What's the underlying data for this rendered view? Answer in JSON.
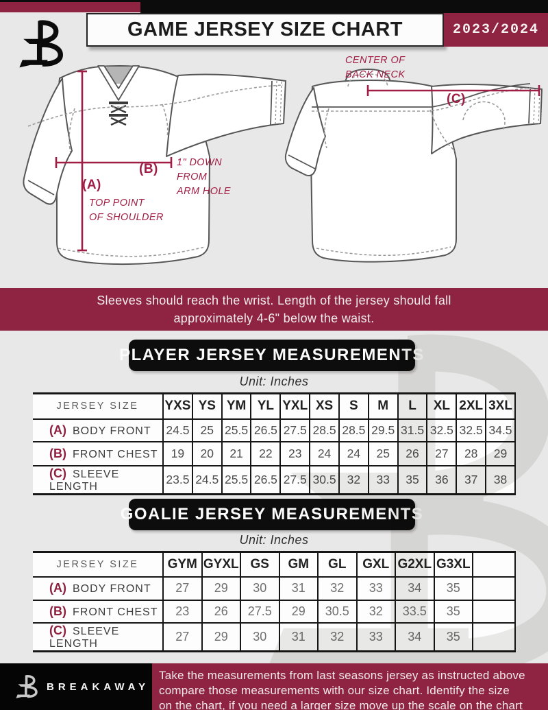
{
  "header": {
    "title": "GAME JERSEY SIZE CHART",
    "season": "2023/2024"
  },
  "diagram": {
    "annotations": {
      "a_tag": "(A)",
      "a_caption_line1": "TOP POINT",
      "a_caption_line2": "OF SHOULDER",
      "b_tag": "(B)",
      "b_caption_line1": "1\" DOWN",
      "b_caption_line2": "FROM",
      "b_caption_line3": "ARM HOLE",
      "c_tag": "(C)",
      "c_caption_line1": "CENTER OF",
      "c_caption_line2": "BACK NECK"
    }
  },
  "notice": {
    "line1": "Sleeves should reach the wrist. Length of the jersey should fall",
    "line2": "approximately 4-6\" below the waist."
  },
  "player_table": {
    "section_title": "PLAYER JERSEY MEASUREMENTS",
    "unit_label": "Unit: Inches",
    "corner_header": "JERSEY SIZE",
    "sizes": [
      "YXS",
      "YS",
      "YM",
      "YL",
      "YXL",
      "XS",
      "S",
      "M",
      "L",
      "XL",
      "2XL",
      "3XL"
    ],
    "rows": [
      {
        "tag": "(A)",
        "label": "BODY FRONT",
        "values": [
          "24.5",
          "25",
          "25.5",
          "26.5",
          "27.5",
          "28.5",
          "28.5",
          "29.5",
          "31.5",
          "32.5",
          "32.5",
          "34.5"
        ]
      },
      {
        "tag": "(B)",
        "label": "FRONT CHEST",
        "values": [
          "19",
          "20",
          "21",
          "22",
          "23",
          "24",
          "24",
          "25",
          "26",
          "27",
          "28",
          "29"
        ]
      },
      {
        "tag": "(C)",
        "label": "SLEEVE LENGTH",
        "values": [
          "23.5",
          "24.5",
          "25.5",
          "26.5",
          "27.5",
          "30.5",
          "32",
          "33",
          "35",
          "36",
          "37",
          "38"
        ]
      }
    ]
  },
  "goalie_table": {
    "section_title": "GOALIE JERSEY MEASUREMENTS",
    "unit_label": "Unit: Inches",
    "corner_header": "JERSEY SIZE",
    "trailing_empty_column": true,
    "sizes": [
      "GYM",
      "GYXL",
      "GS",
      "GM",
      "GL",
      "GXL",
      "G2XL",
      "G3XL"
    ],
    "rows": [
      {
        "tag": "(A)",
        "label": "BODY FRONT",
        "values": [
          "27",
          "29",
          "30",
          "31",
          "32",
          "33",
          "34",
          "35"
        ]
      },
      {
        "tag": "(B)",
        "label": "FRONT CHEST",
        "values": [
          "23",
          "26",
          "27.5",
          "29",
          "30.5",
          "32",
          "33.5",
          "35"
        ]
      },
      {
        "tag": "(C)",
        "label": "SLEEVE LENGTH",
        "values": [
          "27",
          "29",
          "30",
          "31",
          "32",
          "33",
          "34",
          "35"
        ]
      }
    ]
  },
  "footer": {
    "brand": "BREAKAWAY",
    "line1": "Take the measurements from last seasons jersey as instructed above",
    "line2": "compare those measurements  with our size chart. Identify the size",
    "line3": "on the chart, if you need a larger size move up the scale on the chart"
  },
  "colors": {
    "maroon": "#8e2342",
    "measure_line": "#a01d45",
    "black": "#0c0c0c",
    "page_bg": "#e9e8e8",
    "watermark": "#d8d8d5"
  }
}
